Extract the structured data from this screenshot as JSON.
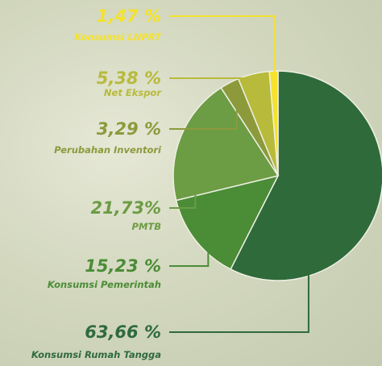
{
  "chart_data": {
    "type": "pie",
    "categories": [
      "Konsumsi LNPRT",
      "Net Ekspor",
      "Perubahan Inventori",
      "PMTB",
      "Konsumsi Pemerintah",
      "Konsumsi Rumah Tangga"
    ],
    "values": [
      1.47,
      5.38,
      3.29,
      21.73,
      15.23,
      63.66
    ],
    "value_labels": [
      "1,47 %",
      "5,38 %",
      "3,29 %",
      "21,73%",
      "15,23 %",
      "63,66 %"
    ],
    "colors": [
      "#f4e22c",
      "#b8ba3c",
      "#8c9a3c",
      "#6c9c44",
      "#4b8c37",
      "#2f6a3b"
    ]
  }
}
